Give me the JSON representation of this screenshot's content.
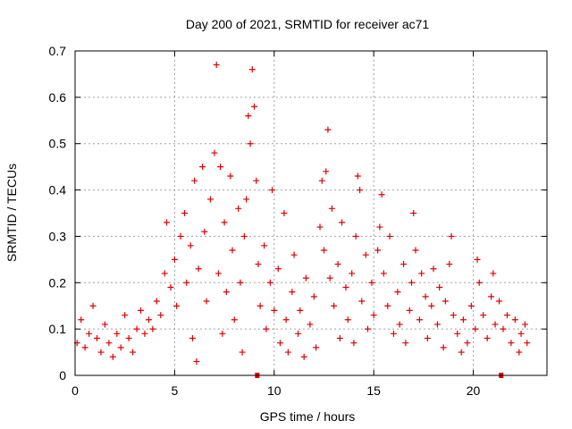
{
  "chart_data": {
    "type": "scatter",
    "title": "Day 200 of 2021, SRMTID for receiver ac71",
    "xlabel": "GPS time / hours",
    "ylabel": "SRMTID / TECUs",
    "xlim": [
      0,
      23.7
    ],
    "ylim": [
      0,
      0.7
    ],
    "xticks": [
      "0",
      "5",
      "10",
      "15",
      "20"
    ],
    "xtick_values": [
      0,
      5,
      10,
      15,
      20
    ],
    "yticks": [
      "0",
      "0.1",
      "0.2",
      "0.3",
      "0.4",
      "0.5",
      "0.6",
      "0.7"
    ],
    "ytick_values": [
      0,
      0.1,
      0.2,
      0.3,
      0.4,
      0.5,
      0.6,
      0.7
    ],
    "grid": true,
    "marker": "+",
    "series_color": "#e00000",
    "gap_markers_x": [
      9.15,
      21.4
    ],
    "points": [
      [
        0.1,
        0.07
      ],
      [
        0.3,
        0.12
      ],
      [
        0.5,
        0.06
      ],
      [
        0.7,
        0.09
      ],
      [
        0.9,
        0.15
      ],
      [
        1.1,
        0.08
      ],
      [
        1.3,
        0.05
      ],
      [
        1.5,
        0.11
      ],
      [
        1.7,
        0.07
      ],
      [
        1.9,
        0.04
      ],
      [
        2.1,
        0.09
      ],
      [
        2.3,
        0.06
      ],
      [
        2.5,
        0.13
      ],
      [
        2.7,
        0.08
      ],
      [
        2.9,
        0.05
      ],
      [
        3.1,
        0.1
      ],
      [
        3.3,
        0.14
      ],
      [
        3.5,
        0.09
      ],
      [
        3.7,
        0.12
      ],
      [
        3.9,
        0.1
      ],
      [
        4.1,
        0.16
      ],
      [
        4.3,
        0.13
      ],
      [
        4.5,
        0.22
      ],
      [
        4.6,
        0.33
      ],
      [
        4.8,
        0.19
      ],
      [
        5.0,
        0.25
      ],
      [
        5.1,
        0.15
      ],
      [
        5.3,
        0.3
      ],
      [
        5.5,
        0.35
      ],
      [
        5.6,
        0.2
      ],
      [
        5.8,
        0.28
      ],
      [
        5.9,
        0.08
      ],
      [
        6.0,
        0.42
      ],
      [
        6.1,
        0.03
      ],
      [
        6.2,
        0.23
      ],
      [
        6.4,
        0.45
      ],
      [
        6.5,
        0.31
      ],
      [
        6.6,
        0.16
      ],
      [
        6.8,
        0.38
      ],
      [
        7.0,
        0.48
      ],
      [
        7.1,
        0.67
      ],
      [
        7.2,
        0.22
      ],
      [
        7.3,
        0.45
      ],
      [
        7.4,
        0.09
      ],
      [
        7.5,
        0.33
      ],
      [
        7.6,
        0.18
      ],
      [
        7.8,
        0.43
      ],
      [
        7.9,
        0.27
      ],
      [
        8.0,
        0.12
      ],
      [
        8.2,
        0.36
      ],
      [
        8.3,
        0.2
      ],
      [
        8.4,
        0.05
      ],
      [
        8.5,
        0.3
      ],
      [
        8.6,
        0.38
      ],
      [
        8.7,
        0.56
      ],
      [
        8.8,
        0.5
      ],
      [
        8.9,
        0.66
      ],
      [
        9.0,
        0.58
      ],
      [
        9.1,
        0.42
      ],
      [
        9.2,
        0.24
      ],
      [
        9.3,
        0.15
      ],
      [
        9.5,
        0.28
      ],
      [
        9.6,
        0.1
      ],
      [
        9.8,
        0.2
      ],
      [
        9.9,
        0.4
      ],
      [
        10.0,
        0.14
      ],
      [
        10.2,
        0.23
      ],
      [
        10.3,
        0.07
      ],
      [
        10.5,
        0.35
      ],
      [
        10.6,
        0.12
      ],
      [
        10.7,
        0.05
      ],
      [
        10.9,
        0.18
      ],
      [
        11.0,
        0.26
      ],
      [
        11.2,
        0.09
      ],
      [
        11.3,
        0.14
      ],
      [
        11.5,
        0.04
      ],
      [
        11.6,
        0.21
      ],
      [
        11.8,
        0.11
      ],
      [
        12.0,
        0.17
      ],
      [
        12.1,
        0.06
      ],
      [
        12.3,
        0.32
      ],
      [
        12.4,
        0.42
      ],
      [
        12.5,
        0.27
      ],
      [
        12.6,
        0.44
      ],
      [
        12.7,
        0.53
      ],
      [
        12.8,
        0.21
      ],
      [
        12.9,
        0.36
      ],
      [
        13.0,
        0.15
      ],
      [
        13.2,
        0.24
      ],
      [
        13.3,
        0.08
      ],
      [
        13.4,
        0.33
      ],
      [
        13.6,
        0.19
      ],
      [
        13.7,
        0.12
      ],
      [
        13.9,
        0.22
      ],
      [
        14.0,
        0.07
      ],
      [
        14.1,
        0.3
      ],
      [
        14.2,
        0.43
      ],
      [
        14.3,
        0.4
      ],
      [
        14.4,
        0.16
      ],
      [
        14.6,
        0.26
      ],
      [
        14.7,
        0.1
      ],
      [
        14.9,
        0.2
      ],
      [
        15.0,
        0.13
      ],
      [
        15.2,
        0.27
      ],
      [
        15.3,
        0.32
      ],
      [
        15.4,
        0.39
      ],
      [
        15.5,
        0.22
      ],
      [
        15.7,
        0.15
      ],
      [
        15.8,
        0.3
      ],
      [
        16.0,
        0.09
      ],
      [
        16.2,
        0.18
      ],
      [
        16.3,
        0.11
      ],
      [
        16.5,
        0.24
      ],
      [
        16.6,
        0.07
      ],
      [
        16.8,
        0.14
      ],
      [
        16.9,
        0.2
      ],
      [
        17.0,
        0.35
      ],
      [
        17.1,
        0.27
      ],
      [
        17.3,
        0.12
      ],
      [
        17.4,
        0.22
      ],
      [
        17.6,
        0.17
      ],
      [
        17.7,
        0.08
      ],
      [
        17.9,
        0.15
      ],
      [
        18.0,
        0.23
      ],
      [
        18.2,
        0.11
      ],
      [
        18.3,
        0.19
      ],
      [
        18.5,
        0.06
      ],
      [
        18.6,
        0.16
      ],
      [
        18.8,
        0.24
      ],
      [
        18.9,
        0.3
      ],
      [
        19.0,
        0.13
      ],
      [
        19.2,
        0.09
      ],
      [
        19.4,
        0.05
      ],
      [
        19.5,
        0.12
      ],
      [
        19.7,
        0.07
      ],
      [
        19.9,
        0.15
      ],
      [
        20.1,
        0.1
      ],
      [
        20.2,
        0.25
      ],
      [
        20.3,
        0.2
      ],
      [
        20.5,
        0.13
      ],
      [
        20.7,
        0.08
      ],
      [
        20.9,
        0.17
      ],
      [
        21.0,
        0.22
      ],
      [
        21.1,
        0.11
      ],
      [
        21.3,
        0.16
      ],
      [
        21.5,
        0.1
      ],
      [
        21.7,
        0.13
      ],
      [
        21.9,
        0.07
      ],
      [
        22.1,
        0.12
      ],
      [
        22.3,
        0.05
      ],
      [
        22.4,
        0.09
      ],
      [
        22.6,
        0.11
      ],
      [
        22.7,
        0.07
      ]
    ]
  }
}
